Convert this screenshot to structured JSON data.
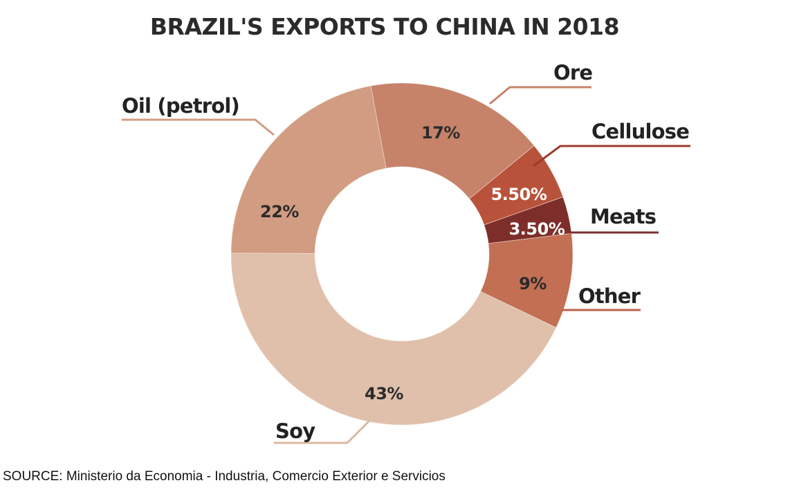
{
  "chart_data": {
    "type": "pie",
    "donut": true,
    "title": "BRAZIL'S EXPORTS TO CHINA IN 2018",
    "slices": [
      {
        "name": "Ore",
        "value": 17,
        "label": "17%",
        "color": "#c6836a",
        "label_color": "#2b2b2b",
        "leader_color": "#c6836a"
      },
      {
        "name": "Cellulose",
        "value": 5.5,
        "label": "5.50%",
        "color": "#b9523b",
        "label_color": "#ffffff",
        "leader_color": "#9c3b2c"
      },
      {
        "name": "Meats",
        "value": 3.5,
        "label": "3.50%",
        "color": "#7e2e2a",
        "label_color": "#ffffff",
        "leader_color": "#7e2e2a"
      },
      {
        "name": "Other",
        "value": 9,
        "label": "9%",
        "color": "#c26f53",
        "label_color": "#2b2b2b",
        "leader_color": "#b4634a"
      },
      {
        "name": "Soy",
        "value": 43,
        "label": "43%",
        "color": "#e0c0ab",
        "label_color": "#2b2b2b",
        "leader_color": "#dcb8a1"
      },
      {
        "name": "Oil (petrol)",
        "value": 22,
        "label": "22%",
        "color": "#d29c82",
        "label_color": "#2b2b2b",
        "leader_color": "#d29c82"
      }
    ]
  },
  "source": "SOURCE: Ministerio da Economia - Industria, Comercio Exterior e Servicios"
}
